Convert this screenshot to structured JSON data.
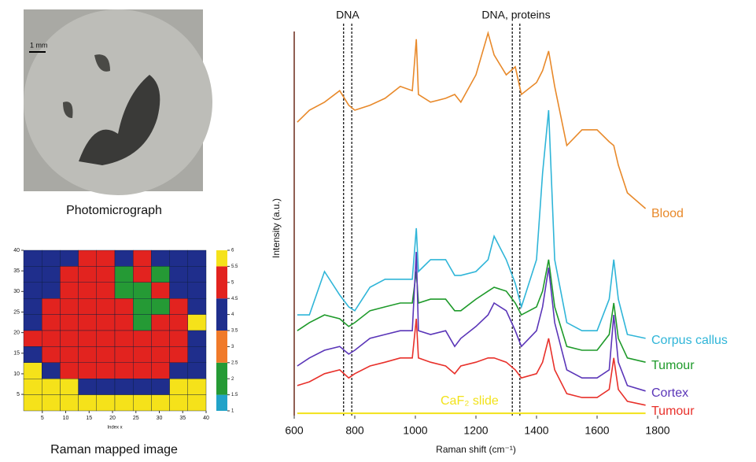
{
  "chart_data": [
    {
      "type": "line",
      "x_label": "Raman shift (cm⁻¹)",
      "y_label": "Intensity (a.u.)",
      "xlim": [
        600,
        1800
      ],
      "xticks": [
        600,
        800,
        1000,
        1200,
        1400,
        1600,
        1800
      ],
      "ylim": [
        0,
        100
      ],
      "x": [
        610,
        650,
        700,
        750,
        780,
        800,
        850,
        900,
        950,
        990,
        1003,
        1010,
        1050,
        1100,
        1130,
        1150,
        1200,
        1240,
        1260,
        1300,
        1330,
        1350,
        1400,
        1420,
        1440,
        1460,
        1500,
        1550,
        1600,
        1640,
        1655,
        1670,
        1700,
        1760
      ],
      "annotations": [
        {
          "text": "DNA",
          "x": [
            763,
            790
          ]
        },
        {
          "text": "DNA, proteins",
          "x": [
            1320,
            1345
          ]
        }
      ],
      "series": [
        {
          "name": "Blood",
          "color": "#e8892a",
          "values": [
            76.4,
            79.5,
            81.6,
            84.6,
            80.8,
            79.5,
            80.8,
            82.6,
            85.7,
            84.6,
            98.0,
            83.6,
            81.6,
            82.6,
            83.6,
            81.6,
            88.7,
            99.6,
            93.9,
            88.7,
            90.8,
            83.6,
            86.7,
            89.8,
            94.9,
            85.7,
            70.3,
            74.4,
            74.4,
            71.3,
            70.3,
            65.2,
            58.0,
            53.9
          ]
        },
        {
          "name": "Corpus callus",
          "color": "#2fb5d8",
          "values": [
            26.2,
            26.2,
            37.5,
            31.4,
            28.3,
            27.3,
            33.4,
            35.5,
            35.5,
            35.5,
            48.8,
            37.5,
            40.6,
            40.6,
            36.5,
            36.5,
            37.5,
            40.6,
            46.7,
            40.6,
            34.4,
            28.3,
            40.6,
            63.1,
            79.5,
            40.6,
            24.2,
            22.1,
            22.1,
            30.3,
            40.6,
            30.3,
            21.1,
            20.1
          ]
        },
        {
          "name": "Tumour",
          "color": "#1e9a2a",
          "values": [
            22.1,
            24.2,
            26.2,
            25.2,
            23.2,
            24.2,
            27.3,
            28.3,
            29.3,
            29.3,
            37.5,
            29.3,
            30.3,
            30.3,
            27.3,
            27.3,
            30.3,
            32.4,
            33.4,
            32.4,
            29.3,
            26.2,
            28.3,
            32.4,
            40.6,
            28.3,
            18.0,
            17.0,
            17.0,
            21.1,
            29.3,
            20.1,
            15.0,
            13.9
          ]
        },
        {
          "name": "Cortex",
          "color": "#5a35b8",
          "values": [
            12.9,
            15.0,
            17.0,
            18.0,
            16.0,
            17.0,
            20.1,
            21.1,
            22.1,
            22.1,
            42.6,
            22.1,
            21.1,
            22.1,
            18.0,
            20.1,
            23.2,
            26.2,
            29.3,
            27.3,
            22.1,
            18.0,
            22.1,
            28.3,
            38.5,
            24.2,
            11.9,
            9.8,
            9.8,
            11.9,
            26.2,
            13.9,
            7.8,
            6.4
          ]
        },
        {
          "name": "Tumour",
          "color": "#e8302a",
          "values": [
            7.8,
            8.8,
            10.9,
            11.9,
            9.8,
            10.9,
            12.9,
            13.9,
            15.0,
            15.0,
            25.2,
            15.0,
            13.9,
            12.9,
            10.9,
            12.9,
            13.9,
            15.0,
            15.0,
            13.9,
            11.9,
            9.8,
            10.9,
            13.9,
            20.1,
            11.9,
            5.7,
            4.7,
            4.7,
            6.8,
            15.0,
            6.8,
            3.7,
            2.7
          ]
        },
        {
          "name": "CaF₂ slide",
          "color": "#f2e21a",
          "values": [
            0.6,
            0.6,
            0.6,
            0.6,
            0.6,
            0.6,
            0.6,
            0.6,
            0.6,
            0.6,
            0.6,
            0.6,
            0.6,
            0.6,
            0.6,
            0.6,
            0.6,
            0.6,
            0.6,
            0.6,
            0.6,
            0.6,
            0.6,
            0.6,
            0.6,
            0.6,
            0.6,
            0.6,
            0.6,
            0.6,
            0.6,
            0.6,
            0.6,
            0.6
          ]
        }
      ]
    },
    {
      "type": "heatmap",
      "photo_caption": "Photomicrograph",
      "scale_bar": "1 mm",
      "title": "Raman mapped image",
      "x_label": "Index x",
      "xlim": [
        1,
        40
      ],
      "xticks": [
        5,
        10,
        15,
        20,
        25,
        30,
        35,
        40
      ],
      "ylim": [
        1,
        40
      ],
      "yticks": [
        5,
        10,
        15,
        20,
        25,
        30,
        35,
        40
      ],
      "clim": [
        1,
        6
      ],
      "cticks": [
        1,
        1.5,
        2,
        2.5,
        3,
        3.5,
        4,
        4.5,
        5,
        5.5,
        6
      ],
      "colorscale": [
        "#22a3c8",
        "#259a35",
        "#f07a2a",
        "#1f2e8c",
        "#e2231f",
        "#f5e21a"
      ],
      "values": [
        [
          4,
          4,
          4,
          5,
          5,
          4,
          5,
          4,
          4,
          4
        ],
        [
          4,
          4,
          5,
          5,
          5,
          2,
          5,
          2,
          4,
          4
        ],
        [
          4,
          4,
          5,
          5,
          5,
          2,
          2,
          5,
          4,
          4
        ],
        [
          4,
          5,
          5,
          5,
          5,
          5,
          2,
          2,
          5,
          4
        ],
        [
          4,
          5,
          5,
          5,
          5,
          5,
          2,
          5,
          5,
          6
        ],
        [
          5,
          5,
          5,
          5,
          5,
          5,
          5,
          5,
          5,
          4
        ],
        [
          4,
          5,
          5,
          5,
          5,
          5,
          5,
          5,
          5,
          4
        ],
        [
          6,
          4,
          5,
          5,
          5,
          5,
          5,
          5,
          4,
          4
        ],
        [
          6,
          6,
          6,
          4,
          4,
          4,
          4,
          4,
          6,
          6
        ],
        [
          6,
          6,
          6,
          6,
          6,
          6,
          6,
          6,
          6,
          6
        ]
      ]
    }
  ]
}
